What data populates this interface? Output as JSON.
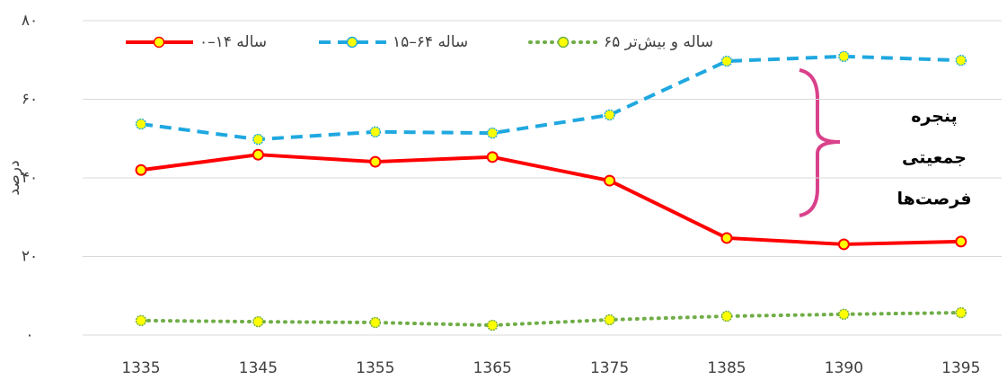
{
  "chart_data": {
    "type": "line",
    "categories": [
      "1335",
      "1345",
      "1355",
      "1365",
      "1375",
      "1385",
      "1390",
      "1395"
    ],
    "series": [
      {
        "name": "۰–۱۴ ساله",
        "color": "#ff0000",
        "style": "solid",
        "values": [
          42,
          45.9,
          44.1,
          45.3,
          39.3,
          24.7,
          23.1,
          23.8
        ]
      },
      {
        "name": "۱۵–۶۴ ساله",
        "color": "#1fa8e0",
        "style": "dashed",
        "values": [
          53.7,
          49.8,
          51.7,
          51.4,
          56,
          69.7,
          70.9,
          69.9
        ]
      },
      {
        "name": "۶۵ ساله و بیش‌تر",
        "color": "#70ad47",
        "style": "dotted",
        "values": [
          3.7,
          3.4,
          3.2,
          2.5,
          3.9,
          4.8,
          5.3,
          5.7
        ]
      }
    ],
    "marker_color": "#ffff00",
    "ylabel": "درصد",
    "ylim": [
      0,
      80
    ],
    "yticks": [
      {
        "value": 0,
        "label": "۰"
      },
      {
        "value": 20,
        "label": "۲۰"
      },
      {
        "value": 40,
        "label": "۴۰"
      },
      {
        "value": 60,
        "label": "۶۰"
      },
      {
        "value": 80,
        "label": "۸۰"
      }
    ],
    "grid": true,
    "annotation": [
      "پنجره",
      "جمعیتی",
      "فرصت‌ها"
    ]
  }
}
